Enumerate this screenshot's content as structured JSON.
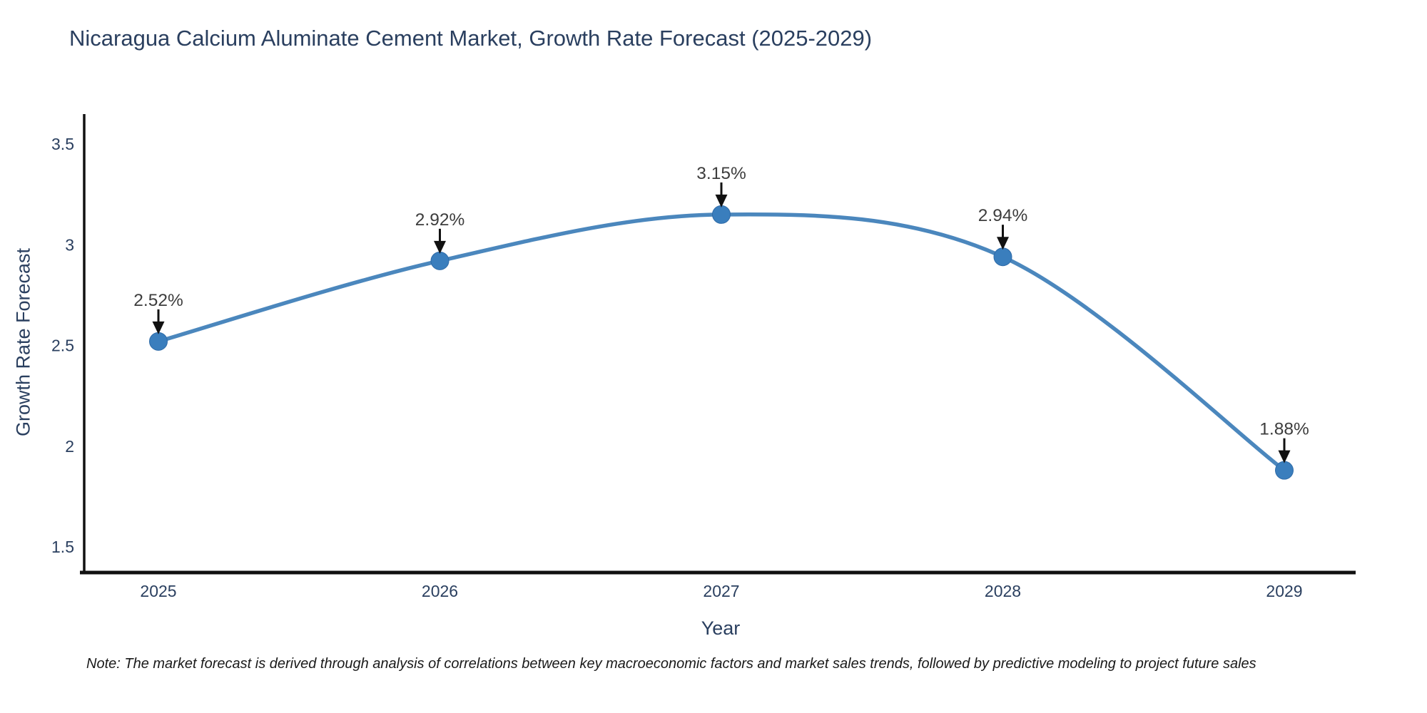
{
  "note": "Note: The market forecast is derived through analysis of correlations between key macroeconomic factors and market sales trends, followed by predictive modeling to project future sales",
  "colors": {
    "line": "#4b87bd",
    "marker_fill": "#3a7ebd",
    "marker_edge": "#2f6ba8",
    "axis_line": "#111111",
    "tick_label": "#2a3f5f",
    "title_text": "#2a3f5f",
    "annotation_text": "#3d3d3d",
    "arrow": "#111111",
    "note_text": "#1a1a1a",
    "background": "#ffffff"
  },
  "chart_data": {
    "type": "line",
    "title": "Nicaragua Calcium Aluminate Cement Market, Growth Rate Forecast (2025-2029)",
    "xlabel": "Year",
    "ylabel": "Growth Rate Forecast",
    "x": [
      2025,
      2026,
      2027,
      2028,
      2029
    ],
    "x_tick_labels": [
      "2025",
      "2026",
      "2027",
      "2028",
      "2029"
    ],
    "values": [
      2.52,
      2.92,
      3.15,
      2.94,
      1.88
    ],
    "point_labels": [
      "2.52%",
      "2.92%",
      "3.15%",
      "2.94%",
      "1.88%"
    ],
    "yticks": [
      1.5,
      2.0,
      2.5,
      3.0,
      3.5
    ],
    "ytick_labels": [
      "1.5",
      "2",
      "2.5",
      "3",
      "3.5"
    ],
    "ylim": [
      1.37,
      3.65
    ],
    "xlim": [
      2024.74,
      2029.25
    ],
    "grid": false,
    "legend": "none",
    "line_shape": "spline",
    "markers": true,
    "annotations": "value labels with downward arrows above each point"
  }
}
